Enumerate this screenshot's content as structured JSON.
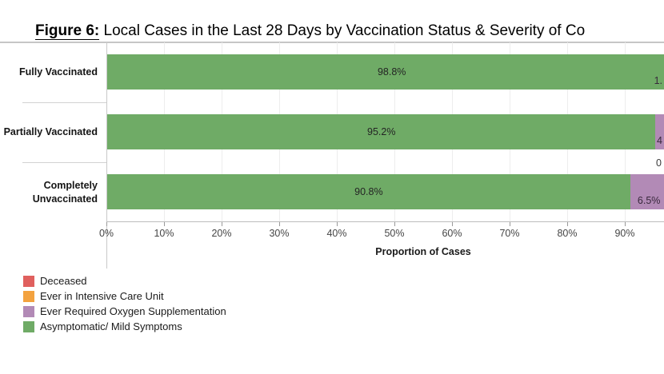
{
  "title": {
    "prefix": "Figure 6:",
    "rest": " Local Cases in the Last 28 Days by Vaccination Status & Severity of Co"
  },
  "axis": {
    "label": "Proportion of Cases",
    "ticks": [
      "0%",
      "10%",
      "20%",
      "30%",
      "40%",
      "50%",
      "60%",
      "70%",
      "80%",
      "90%"
    ]
  },
  "colors": {
    "asymptomatic": "#6fab66",
    "oxygen": "#b28ab6",
    "icu": "#f3a23f",
    "deceased": "#e0605e",
    "grid": "#ededed"
  },
  "chart_data": {
    "type": "bar",
    "orientation": "horizontal",
    "stacked": true,
    "title": "Figure 6: Local Cases in the Last 28 Days by Vaccination Status & Severity of Co",
    "categories": [
      "Fully Vaccinated",
      "Partially Vaccinated",
      "Completely Unvaccinated"
    ],
    "xlabel": "Proportion of Cases",
    "x_ticks": [
      "0%",
      "10%",
      "20%",
      "30%",
      "40%",
      "50%",
      "60%",
      "70%",
      "80%",
      "90%"
    ],
    "xlim_visible_pct": [
      0,
      96.8
    ],
    "grid": "vertical-light",
    "legend_position": "bottom-left",
    "series": [
      {
        "name": "Asymptomatic/ Mild Symptoms",
        "color": "#6fab66",
        "values": [
          98.8,
          95.2,
          90.8
        ],
        "value_labels": [
          "98.8%",
          "95.2%",
          "90.8%"
        ]
      },
      {
        "name": "Ever Required Oxygen Supplementation",
        "color": "#b28ab6",
        "values": [
          null,
          null,
          6.5
        ],
        "value_labels_visible": [
          "1.",
          "4",
          "6.5%"
        ]
      },
      {
        "name": "Ever in Intensive Care Unit",
        "color": "#f3a23f",
        "values": [
          null,
          null,
          null
        ],
        "value_labels_visible": [
          "",
          "",
          "0"
        ]
      },
      {
        "name": "Deceased",
        "color": "#e0605e",
        "values": [
          null,
          null,
          null
        ]
      }
    ]
  },
  "bars": [
    {
      "category": "Fully Vaccinated",
      "green_pct": 98.8,
      "green_label": "98.8%",
      "oxygen_pct": null,
      "edge_label": "1.",
      "above_label": ""
    },
    {
      "category": "Partially Vaccinated",
      "green_pct": 95.2,
      "green_label": "95.2%",
      "oxygen_pct": null,
      "edge_label": "4",
      "above_label": ""
    },
    {
      "category": "Completely Unvaccinated",
      "green_pct": 90.8,
      "green_label": "90.8%",
      "oxygen_pct": 6.5,
      "edge_label": "6.5%",
      "above_label": "0"
    }
  ],
  "legend": {
    "items": [
      {
        "label": "Deceased",
        "color": "#e0605e"
      },
      {
        "label": "Ever in Intensive Care Unit",
        "color": "#f3a23f"
      },
      {
        "label": "Ever Required Oxygen Supplementation",
        "color": "#b28ab6"
      },
      {
        "label": "Asymptomatic/ Mild Symptoms",
        "color": "#6fab66"
      }
    ]
  }
}
